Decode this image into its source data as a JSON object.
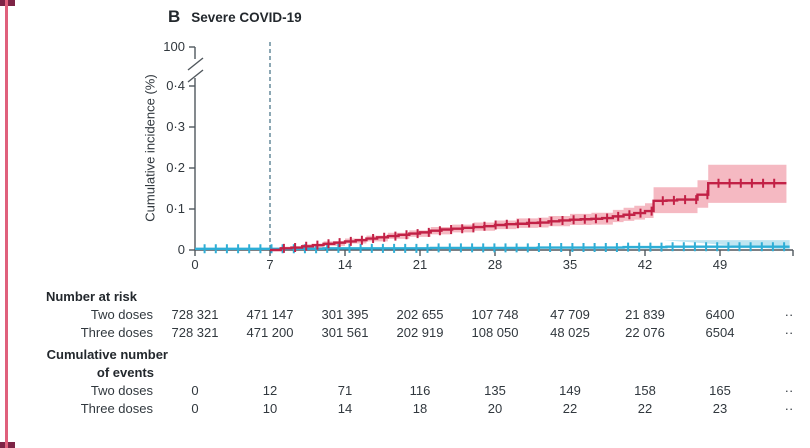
{
  "figure": {
    "panel_label": "B",
    "title": "Severe COVID-19",
    "y_axis_label": "Cumulative incidence (%)"
  },
  "colors": {
    "two_doses_line": "#c22146",
    "two_doses_band": "#f5b9c2",
    "three_doses_line": "#2eaed6",
    "three_doses_band": "#bfe5f1",
    "axis": "#50575d",
    "text": "#31383e",
    "reference_line": "#5b8294",
    "frame_left": "#e0607c",
    "frame_corner": "#7e2446"
  },
  "chart_data": {
    "type": "line",
    "subtype": "kaplan-meier-cumulative-incidence-step",
    "title": "B Severe COVID-19",
    "xlabel": "",
    "ylabel": "Cumulative incidence (%)",
    "xlim": [
      0,
      55.8
    ],
    "ylim": [
      0,
      0.45
    ],
    "axis_break": true,
    "y_break_label": "100",
    "x_ticks": [
      0,
      7,
      14,
      21,
      28,
      35,
      42,
      49
    ],
    "x_tick_labels": [
      "0",
      "7",
      "14",
      "21",
      "28",
      "35",
      "42",
      "49"
    ],
    "y_ticks": [
      0,
      0.1,
      0.2,
      0.3,
      0.4
    ],
    "y_tick_labels": [
      "0",
      "0·1",
      "0·2",
      "0·3",
      "0·4"
    ],
    "grid": false,
    "legend_position": "none",
    "reference_line_x": 7,
    "series": [
      {
        "name": "Two doses",
        "color": "#c22146",
        "band_color": "#f5b9c2",
        "points": [
          [
            7,
            0.0
          ],
          [
            8,
            0.004
          ],
          [
            9,
            0.006
          ],
          [
            10,
            0.009
          ],
          [
            11,
            0.012
          ],
          [
            12,
            0.015
          ],
          [
            13,
            0.018
          ],
          [
            14,
            0.021
          ],
          [
            15,
            0.024
          ],
          [
            16,
            0.028
          ],
          [
            17,
            0.031
          ],
          [
            18,
            0.034
          ],
          [
            19,
            0.037
          ],
          [
            20,
            0.04
          ],
          [
            21,
            0.043
          ],
          [
            22,
            0.047
          ],
          [
            23,
            0.05
          ],
          [
            24,
            0.052
          ],
          [
            25,
            0.054
          ],
          [
            26,
            0.056
          ],
          [
            27,
            0.058
          ],
          [
            28,
            0.061
          ],
          [
            29,
            0.063
          ],
          [
            30,
            0.064
          ],
          [
            31,
            0.066
          ],
          [
            32,
            0.067
          ],
          [
            33,
            0.07
          ],
          [
            34,
            0.072
          ],
          [
            35,
            0.074
          ],
          [
            36,
            0.075
          ],
          [
            37,
            0.076
          ],
          [
            38,
            0.078
          ],
          [
            39,
            0.082
          ],
          [
            40,
            0.086
          ],
          [
            41,
            0.09
          ],
          [
            42,
            0.095
          ],
          [
            42.8,
            0.12
          ],
          [
            44,
            0.121
          ],
          [
            45,
            0.123
          ],
          [
            46.9,
            0.135
          ],
          [
            47.9,
            0.163
          ],
          [
            55.2,
            0.163
          ]
        ],
        "band": [
          [
            7,
            0,
            0
          ],
          [
            8,
            0.001,
            0.008
          ],
          [
            10,
            0.005,
            0.014
          ],
          [
            12,
            0.01,
            0.021
          ],
          [
            14,
            0.016,
            0.028
          ],
          [
            16,
            0.021,
            0.035
          ],
          [
            18,
            0.027,
            0.042
          ],
          [
            20,
            0.032,
            0.048
          ],
          [
            22,
            0.038,
            0.056
          ],
          [
            24,
            0.043,
            0.062
          ],
          [
            26,
            0.047,
            0.067
          ],
          [
            28,
            0.051,
            0.072
          ],
          [
            30,
            0.054,
            0.077
          ],
          [
            32,
            0.055,
            0.079
          ],
          [
            33,
            0.058,
            0.083
          ],
          [
            35,
            0.061,
            0.088
          ],
          [
            37,
            0.062,
            0.091
          ],
          [
            39,
            0.068,
            0.098
          ],
          [
            40,
            0.071,
            0.103
          ],
          [
            41,
            0.074,
            0.108
          ],
          [
            42,
            0.078,
            0.114
          ],
          [
            42.8,
            0.09,
            0.153
          ],
          [
            46.9,
            0.103,
            0.17
          ],
          [
            47.9,
            0.115,
            0.208
          ],
          [
            55.2,
            0.115,
            0.208
          ]
        ],
        "censor_start": 8.3,
        "censor_end": 55.0,
        "censor_step": 1.04
      },
      {
        "name": "Three doses",
        "color": "#2eaed6",
        "band_color": "#bfe5f1",
        "points": [
          [
            0,
            0.003
          ],
          [
            12,
            0.004
          ],
          [
            22,
            0.005
          ],
          [
            32,
            0.006
          ],
          [
            40,
            0.007
          ],
          [
            44,
            0.008
          ],
          [
            55.5,
            0.008
          ]
        ],
        "band": [
          [
            43.7,
            0.0,
            0.024
          ],
          [
            55.5,
            0.0,
            0.024
          ]
        ],
        "censor_start": 0.9,
        "censor_end": 55.3,
        "censor_step": 1.04
      }
    ]
  },
  "risk_table": {
    "header": "Number at risk",
    "rows": [
      {
        "label": "Two doses",
        "values": [
          "728 321",
          "471 147",
          "301 395",
          "202 655",
          "107 748",
          "47 709",
          "21 839",
          "6400",
          "··"
        ]
      },
      {
        "label": "Three doses",
        "values": [
          "728 321",
          "471 200",
          "301 561",
          "202 919",
          "108 050",
          "48 025",
          "22 076",
          "6504",
          "··"
        ]
      }
    ]
  },
  "events_table": {
    "header_line1": "Cumulative number",
    "header_line2": "of events",
    "rows": [
      {
        "label": "Two doses",
        "values": [
          "0",
          "12",
          "71",
          "116",
          "135",
          "149",
          "158",
          "165",
          "··"
        ]
      },
      {
        "label": "Three doses",
        "values": [
          "0",
          "10",
          "14",
          "18",
          "20",
          "22",
          "22",
          "23",
          "··"
        ]
      }
    ]
  }
}
